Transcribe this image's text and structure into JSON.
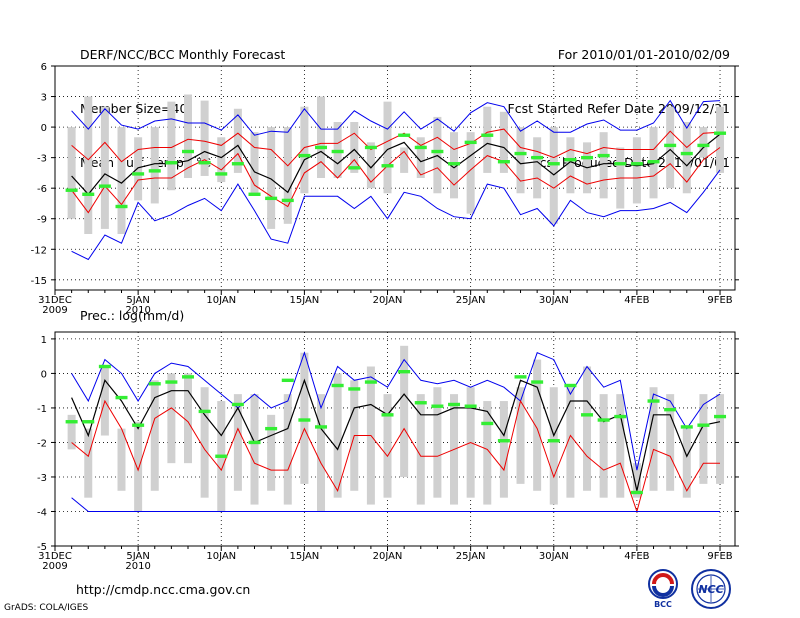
{
  "header": {
    "left": [
      "DERF/NCC/BCC Monthly Forecast",
      "Member Size=40",
      "Mean Surf. Temp.: °C"
    ],
    "right": [
      "For 2010/01/01-2010/02/09",
      "Fcst Started Refer Date 2009/12/31",
      "Fcst Produced Date 2010/01/01"
    ]
  },
  "precip_label": "Prec.: log(mm/d)",
  "footer": {
    "url": "http://cmdp.ncc.cma.gov.cn",
    "grads": "GrADS: COLA/IGES"
  },
  "logos": {
    "bcc": "BCC",
    "ncc": "NCC"
  },
  "colors": {
    "range": "#0000ee",
    "spread": "#ee0000",
    "mean": "#000000",
    "box": "#d0d0d0",
    "obs": "#33ee33"
  },
  "chart_data": [
    {
      "type": "line",
      "title": "Mean Surf. Temp.: °C",
      "ylim": [
        -16,
        6
      ],
      "yticks": [
        6,
        3,
        0,
        -3,
        -6,
        -9,
        -12,
        -15
      ],
      "x_tick_labels": [
        {
          "day": 0,
          "line1": "31DEC",
          "line2": "2009"
        },
        {
          "day": 5,
          "line1": "5JAN",
          "line2": "2010"
        },
        {
          "day": 10,
          "line1": "10JAN",
          "line2": ""
        },
        {
          "day": 15,
          "line1": "15JAN",
          "line2": ""
        },
        {
          "day": 20,
          "line1": "20JAN",
          "line2": ""
        },
        {
          "day": 25,
          "line1": "25JAN",
          "line2": ""
        },
        {
          "day": 30,
          "line1": "30JAN",
          "line2": ""
        },
        {
          "day": 35,
          "line1": "4FEB",
          "line2": ""
        },
        {
          "day": 40,
          "line1": "9FEB",
          "line2": ""
        }
      ],
      "x": [
        1,
        2,
        3,
        4,
        5,
        6,
        7,
        8,
        9,
        10,
        11,
        12,
        13,
        14,
        15,
        16,
        17,
        18,
        19,
        20,
        21,
        22,
        23,
        24,
        25,
        26,
        27,
        28,
        29,
        30,
        31,
        32,
        33,
        34,
        35,
        36,
        37,
        38,
        39,
        40
      ],
      "series": [
        {
          "name": "max",
          "values": [
            1.6,
            -0.2,
            1.8,
            0.2,
            -0.2,
            0.6,
            0.8,
            0.4,
            0.4,
            -0.3,
            1.2,
            -0.8,
            -0.4,
            -0.5,
            1.8,
            -0.2,
            -0.2,
            1.6,
            0.6,
            -0.2,
            1.5,
            -0.2,
            0.8,
            -0.4,
            1.4,
            2.4,
            2.0,
            -0.4,
            0.6,
            -0.5,
            -0.5,
            0.3,
            0.7,
            -0.3,
            -0.3,
            0.4,
            2.6,
            -0.1,
            2.5,
            2.6
          ]
        },
        {
          "name": "upper",
          "values": [
            -1.8,
            -3.2,
            -1.5,
            -3.4,
            -2.2,
            -2.0,
            -2.0,
            -1.2,
            -1.4,
            -1.8,
            -0.6,
            -2.0,
            -2.2,
            -3.8,
            -2.0,
            -1.6,
            -1.6,
            -0.6,
            -2.2,
            -1.4,
            -0.6,
            -1.8,
            -1.0,
            -2.2,
            -1.6,
            -0.5,
            -0.2,
            -2.0,
            -2.4,
            -3.0,
            -2.2,
            -2.6,
            -2.0,
            -2.2,
            -2.2,
            -2.2,
            -0.4,
            -2.0,
            -0.6,
            -0.5
          ]
        },
        {
          "name": "mean",
          "values": [
            -4.8,
            -6.6,
            -4.6,
            -5.5,
            -4.0,
            -3.6,
            -3.6,
            -3.3,
            -2.4,
            -3.0,
            -1.8,
            -4.4,
            -5.1,
            -6.4,
            -3.2,
            -2.4,
            -3.6,
            -2.2,
            -4.0,
            -2.2,
            -1.5,
            -3.4,
            -2.8,
            -4.0,
            -2.8,
            -1.6,
            -2.0,
            -3.6,
            -3.4,
            -4.7,
            -3.4,
            -4.0,
            -3.6,
            -3.6,
            -3.8,
            -3.6,
            -2.2,
            -3.8,
            -2.0,
            -0.7
          ]
        },
        {
          "name": "lower",
          "values": [
            -6.2,
            -8.4,
            -5.8,
            -7.6,
            -5.2,
            -5.0,
            -5.0,
            -4.0,
            -3.2,
            -4.2,
            -2.6,
            -5.7,
            -6.8,
            -7.8,
            -4.5,
            -3.4,
            -5.0,
            -3.2,
            -5.4,
            -3.8,
            -2.4,
            -4.7,
            -4.0,
            -5.7,
            -4.2,
            -2.8,
            -3.4,
            -5.3,
            -5.0,
            -6.0,
            -4.8,
            -5.6,
            -5.2,
            -5.0,
            -5.0,
            -4.8,
            -3.6,
            -5.4,
            -3.2,
            -2.0
          ]
        },
        {
          "name": "min",
          "values": [
            -12.2,
            -13.0,
            -10.6,
            -11.4,
            -7.4,
            -9.2,
            -8.6,
            -7.7,
            -7.0,
            -8.2,
            -5.6,
            -8.2,
            -11.0,
            -11.4,
            -6.8,
            -6.8,
            -6.8,
            -8.0,
            -6.8,
            -9.0,
            -6.4,
            -6.8,
            -8.0,
            -8.8,
            -9.0,
            -5.6,
            -6.0,
            -8.6,
            -8.0,
            -9.7,
            -7.2,
            -8.4,
            -8.8,
            -8.2,
            -8.2,
            -8.0,
            -7.4,
            -8.4,
            -6.4,
            -4.2
          ]
        },
        {
          "name": "box_top",
          "values": [
            0.0,
            3.0,
            2.0,
            0.0,
            -1.0,
            0.0,
            2.5,
            3.2,
            2.6,
            -1.0,
            1.8,
            -0.5,
            0.0,
            0.0,
            2.0,
            3.0,
            0.5,
            0.5,
            -1.5,
            2.5,
            -2.0,
            -1.0,
            1.0,
            -0.5,
            -0.5,
            2.0,
            1.5,
            0.0,
            -1.0,
            0.0,
            -1.0,
            -1.5,
            -0.5,
            -2.0,
            -1.0,
            0.0,
            2.0,
            0.5,
            0.0,
            2.0
          ]
        },
        {
          "name": "box_bottom",
          "values": [
            -9.0,
            -10.5,
            -10.0,
            -10.5,
            -7.2,
            -7.5,
            -6.2,
            -5.0,
            -4.8,
            -5.4,
            -4.5,
            -6.5,
            -10.0,
            -9.5,
            -6.5,
            -5.0,
            -5.0,
            -4.5,
            -6.0,
            -6.5,
            -4.5,
            -5.0,
            -6.5,
            -7.0,
            -8.5,
            -4.5,
            -4.5,
            -6.5,
            -7.0,
            -9.5,
            -6.5,
            -6.5,
            -7.0,
            -8.0,
            -7.5,
            -7.0,
            -6.0,
            -6.5,
            -3.0,
            -4.5
          ]
        },
        {
          "name": "obs",
          "values": [
            -6.2,
            -6.6,
            -5.8,
            -7.8,
            -4.6,
            -4.3,
            -3.5,
            -2.4,
            -3.5,
            -4.6,
            -3.6,
            -6.6,
            -7.0,
            -7.2,
            -2.8,
            -2.0,
            -2.4,
            -4.0,
            -2.0,
            -3.8,
            -0.8,
            -2.0,
            -2.4,
            -3.6,
            -1.5,
            -0.8,
            -3.4,
            -2.6,
            -3.0,
            -3.6,
            -3.2,
            -3.0,
            -2.8,
            -3.6,
            -3.6,
            -3.4,
            -1.8,
            -2.6,
            -1.8,
            -0.6
          ]
        }
      ]
    },
    {
      "type": "line",
      "title": "Prec.: log(mm/d)",
      "ylim": [
        -5,
        1.2
      ],
      "yticks": [
        1,
        0,
        -1,
        -2,
        -3,
        -4,
        -5
      ],
      "x_tick_labels": [
        {
          "day": 0,
          "line1": "31DEC",
          "line2": "2009"
        },
        {
          "day": 5,
          "line1": "5JAN",
          "line2": "2010"
        },
        {
          "day": 10,
          "line1": "10JAN",
          "line2": ""
        },
        {
          "day": 15,
          "line1": "15JAN",
          "line2": ""
        },
        {
          "day": 20,
          "line1": "20JAN",
          "line2": ""
        },
        {
          "day": 25,
          "line1": "25JAN",
          "line2": ""
        },
        {
          "day": 30,
          "line1": "30JAN",
          "line2": ""
        },
        {
          "day": 35,
          "line1": "4FEB",
          "line2": ""
        },
        {
          "day": 40,
          "line1": "9FEB",
          "line2": ""
        }
      ],
      "x": [
        1,
        2,
        3,
        4,
        5,
        6,
        7,
        8,
        9,
        10,
        11,
        12,
        13,
        14,
        15,
        16,
        17,
        18,
        19,
        20,
        21,
        22,
        23,
        24,
        25,
        26,
        27,
        28,
        29,
        30,
        31,
        32,
        33,
        34,
        35,
        36,
        37,
        38,
        39,
        40
      ],
      "series": [
        {
          "name": "max",
          "values": [
            0.0,
            -0.8,
            0.4,
            0.0,
            -0.8,
            0.0,
            0.3,
            0.2,
            -0.2,
            -0.6,
            -1.0,
            -0.6,
            -1.0,
            -0.8,
            0.6,
            -1.0,
            0.2,
            -0.2,
            -0.1,
            -0.4,
            0.4,
            -0.2,
            -0.3,
            -0.2,
            -0.4,
            -0.2,
            -0.4,
            -0.8,
            0.6,
            0.4,
            -0.6,
            0.2,
            -0.4,
            -0.2,
            -2.8,
            -0.6,
            -0.8,
            -1.6,
            -0.9,
            -0.6
          ]
        },
        {
          "name": "mean",
          "values": [
            -0.7,
            -1.8,
            -0.2,
            -0.8,
            -1.6,
            -0.7,
            -0.5,
            -0.5,
            -1.2,
            -1.8,
            -1.0,
            -2.0,
            -1.8,
            -1.6,
            -0.2,
            -1.6,
            -2.2,
            -1.0,
            -0.9,
            -1.2,
            -0.6,
            -1.2,
            -1.2,
            -1.0,
            -1.0,
            -1.1,
            -1.8,
            -0.2,
            -0.4,
            -1.8,
            -0.8,
            -0.8,
            -1.4,
            -1.2,
            -3.4,
            -1.2,
            -1.2,
            -2.4,
            -1.5,
            -1.4
          ]
        },
        {
          "name": "lower",
          "values": [
            -2.0,
            -2.4,
            -0.8,
            -1.6,
            -2.8,
            -1.3,
            -1.0,
            -1.4,
            -2.2,
            -2.8,
            -1.6,
            -2.6,
            -2.8,
            -2.8,
            -1.6,
            -2.6,
            -3.4,
            -1.8,
            -1.8,
            -2.4,
            -1.6,
            -2.4,
            -2.4,
            -2.2,
            -2.0,
            -2.2,
            -2.8,
            -0.8,
            -1.6,
            -3.0,
            -1.8,
            -2.4,
            -2.8,
            -2.6,
            -4.0,
            -2.2,
            -2.4,
            -3.4,
            -2.6,
            -2.6
          ]
        },
        {
          "name": "min",
          "values": [
            -3.6,
            -4.0,
            -4.0,
            -4.0,
            -4.0,
            -4.0,
            -4.0,
            -4.0,
            -4.0,
            -4.0,
            -4.0,
            -4.0,
            -4.0,
            -4.0,
            -4.0,
            -4.0,
            -4.0,
            -4.0,
            -4.0,
            -4.0,
            -4.0,
            -4.0,
            -4.0,
            -4.0,
            -4.0,
            -4.0,
            -4.0,
            -4.0,
            -4.0,
            -4.0,
            -4.0,
            -4.0,
            -4.0,
            -4.0,
            -4.0,
            -4.0,
            -4.0,
            -4.0,
            -4.0,
            -4.0
          ]
        },
        {
          "name": "box_top",
          "values": [
            -1.2,
            -1.6,
            0.2,
            -1.6,
            -1.4,
            -0.2,
            0.0,
            0.0,
            -0.4,
            -0.8,
            -0.6,
            -0.6,
            -1.2,
            -0.6,
            0.6,
            -0.6,
            0.0,
            -0.2,
            0.2,
            -0.6,
            0.8,
            -0.6,
            -0.4,
            -0.6,
            -0.4,
            -0.8,
            -0.8,
            -0.4,
            0.4,
            -0.4,
            -0.4,
            0.2,
            -0.6,
            -0.6,
            -2.6,
            -0.4,
            -0.6,
            -1.6,
            -0.6,
            -0.6
          ]
        },
        {
          "name": "box_bottom",
          "values": [
            -2.2,
            -3.6,
            -1.8,
            -3.4,
            -4.0,
            -3.4,
            -2.6,
            -2.6,
            -3.6,
            -4.0,
            -3.4,
            -3.8,
            -3.4,
            -3.8,
            -3.2,
            -4.0,
            -3.6,
            -3.4,
            -3.8,
            -3.6,
            -3.0,
            -3.8,
            -3.6,
            -3.8,
            -3.6,
            -3.8,
            -3.6,
            -3.2,
            -3.4,
            -3.8,
            -3.6,
            -3.4,
            -3.6,
            -3.6,
            -3.6,
            -3.4,
            -3.4,
            -3.6,
            -3.2,
            -3.2
          ]
        },
        {
          "name": "obs",
          "values": [
            -1.4,
            -1.4,
            0.2,
            -0.7,
            -1.5,
            -0.3,
            -0.25,
            -0.1,
            -1.1,
            -2.4,
            -0.9,
            -2.0,
            -1.6,
            -0.2,
            -1.35,
            -1.55,
            -0.35,
            -0.45,
            -0.25,
            -1.2,
            0.05,
            -0.85,
            -0.95,
            -0.9,
            -0.95,
            -1.45,
            -1.95,
            -0.1,
            -0.25,
            -1.95,
            -0.35,
            -1.2,
            -1.35,
            -1.25,
            -3.45,
            -0.8,
            -1.05,
            -1.55,
            -1.5,
            -1.25
          ]
        }
      ]
    }
  ]
}
